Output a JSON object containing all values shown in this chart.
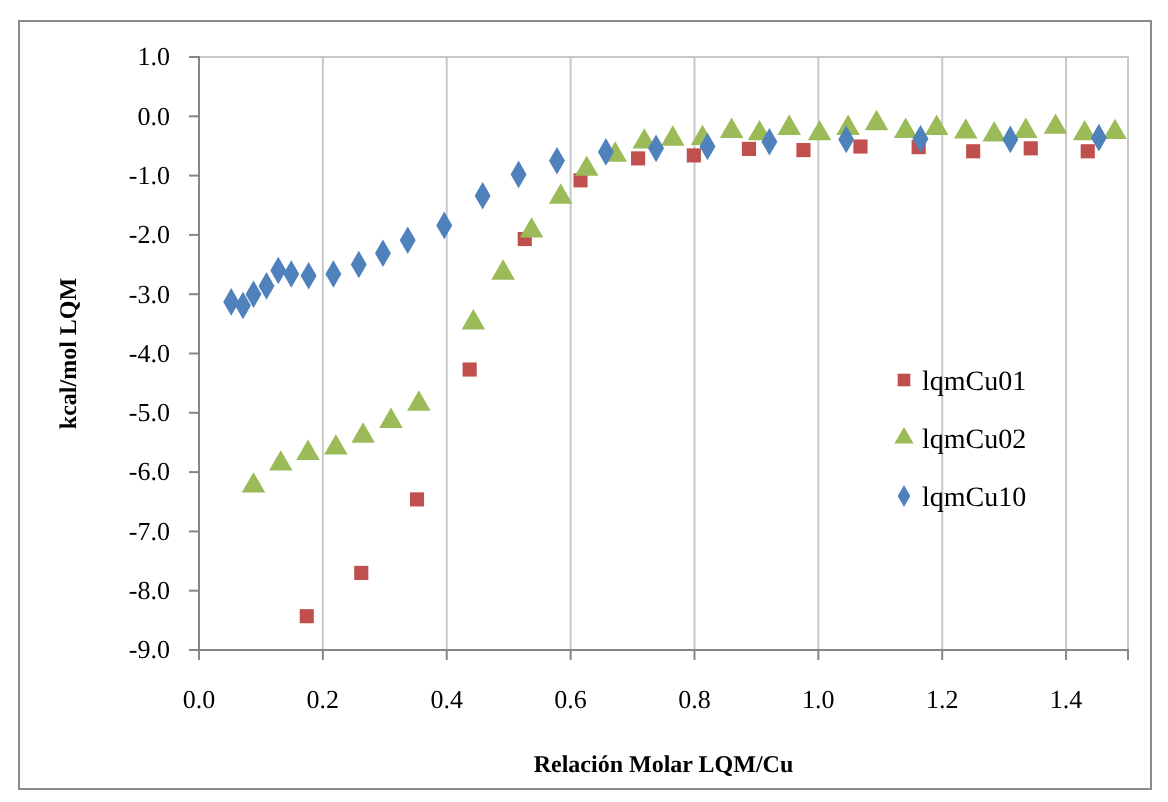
{
  "chart_data": {
    "type": "scatter",
    "xlabel": "Relación Molar LQM/Cu",
    "ylabel": "kcal/mol LQM",
    "xlim": [
      0,
      1.5
    ],
    "xticks": [
      {
        "value": 0,
        "label": "0.0"
      },
      {
        "value": 0.2,
        "label": "0.2"
      },
      {
        "value": 0.4,
        "label": "0.4"
      },
      {
        "value": 0.6,
        "label": "0.6"
      },
      {
        "value": 0.8,
        "label": "0.8"
      },
      {
        "value": 1,
        "label": "1.0"
      },
      {
        "value": 1.2,
        "label": "1.2"
      },
      {
        "value": 1.4,
        "label": "1.4"
      }
    ],
    "ylim": [
      -9,
      1
    ],
    "yticks": [
      {
        "value": 1,
        "label": "1.0"
      },
      {
        "value": 0,
        "label": "0.0"
      },
      {
        "value": -1,
        "label": "-1.0"
      },
      {
        "value": -2,
        "label": "-2.0"
      },
      {
        "value": -3,
        "label": "-3.0"
      },
      {
        "value": -4,
        "label": "-4.0"
      },
      {
        "value": -5,
        "label": "-5.0"
      },
      {
        "value": -6,
        "label": "-6.0"
      },
      {
        "value": -7,
        "label": "-7.0"
      },
      {
        "value": -8,
        "label": "-8.0"
      },
      {
        "value": -9,
        "label": "-9.0"
      }
    ],
    "grid": "x",
    "legend": "right",
    "series": [
      {
        "name": "lqmCu01",
        "color": "#c0504d",
        "marker": "square",
        "x": [
          0.174,
          0.262,
          0.352,
          0.437,
          0.526,
          0.616,
          0.709,
          0.799,
          0.888,
          0.976,
          1.068,
          1.162,
          1.25,
          1.343,
          1.435
        ],
        "values": [
          -8.43,
          -7.7,
          -6.46,
          -4.27,
          -2.07,
          -1.08,
          -0.71,
          -0.66,
          -0.55,
          -0.57,
          -0.51,
          -0.52,
          -0.59,
          -0.54,
          -0.59
        ]
      },
      {
        "name": "lqmCu02",
        "color": "#9bbb59",
        "marker": "triangle",
        "x": [
          0.088,
          0.132,
          0.176,
          0.221,
          0.265,
          0.31,
          0.355,
          0.443,
          0.491,
          0.537,
          0.584,
          0.626,
          0.672,
          0.719,
          0.765,
          0.813,
          0.86,
          0.905,
          0.953,
          1.002,
          1.048,
          1.094,
          1.141,
          1.191,
          1.238,
          1.284,
          1.335,
          1.383,
          1.43,
          1.479
        ],
        "values": [
          -6.23,
          -5.86,
          -5.68,
          -5.59,
          -5.39,
          -5.14,
          -4.85,
          -3.48,
          -2.64,
          -1.93,
          -1.36,
          -0.89,
          -0.65,
          -0.43,
          -0.38,
          -0.37,
          -0.25,
          -0.29,
          -0.2,
          -0.29,
          -0.2,
          -0.12,
          -0.25,
          -0.2,
          -0.26,
          -0.31,
          -0.25,
          -0.18,
          -0.29,
          -0.27
        ]
      },
      {
        "name": "lqmCu10",
        "color": "#4f81bd",
        "marker": "diamond",
        "x": [
          0.052,
          0.071,
          0.088,
          0.109,
          0.128,
          0.149,
          0.177,
          0.217,
          0.258,
          0.297,
          0.337,
          0.396,
          0.458,
          0.516,
          0.578,
          0.657,
          0.738,
          0.821,
          0.921,
          1.045,
          1.165,
          1.31,
          1.453
        ],
        "values": [
          -3.13,
          -3.19,
          -3.0,
          -2.86,
          -2.6,
          -2.66,
          -2.69,
          -2.66,
          -2.5,
          -2.31,
          -2.09,
          -1.84,
          -1.34,
          -0.98,
          -0.75,
          -0.6,
          -0.54,
          -0.51,
          -0.43,
          -0.39,
          -0.38,
          -0.39,
          -0.36
        ]
      }
    ]
  }
}
